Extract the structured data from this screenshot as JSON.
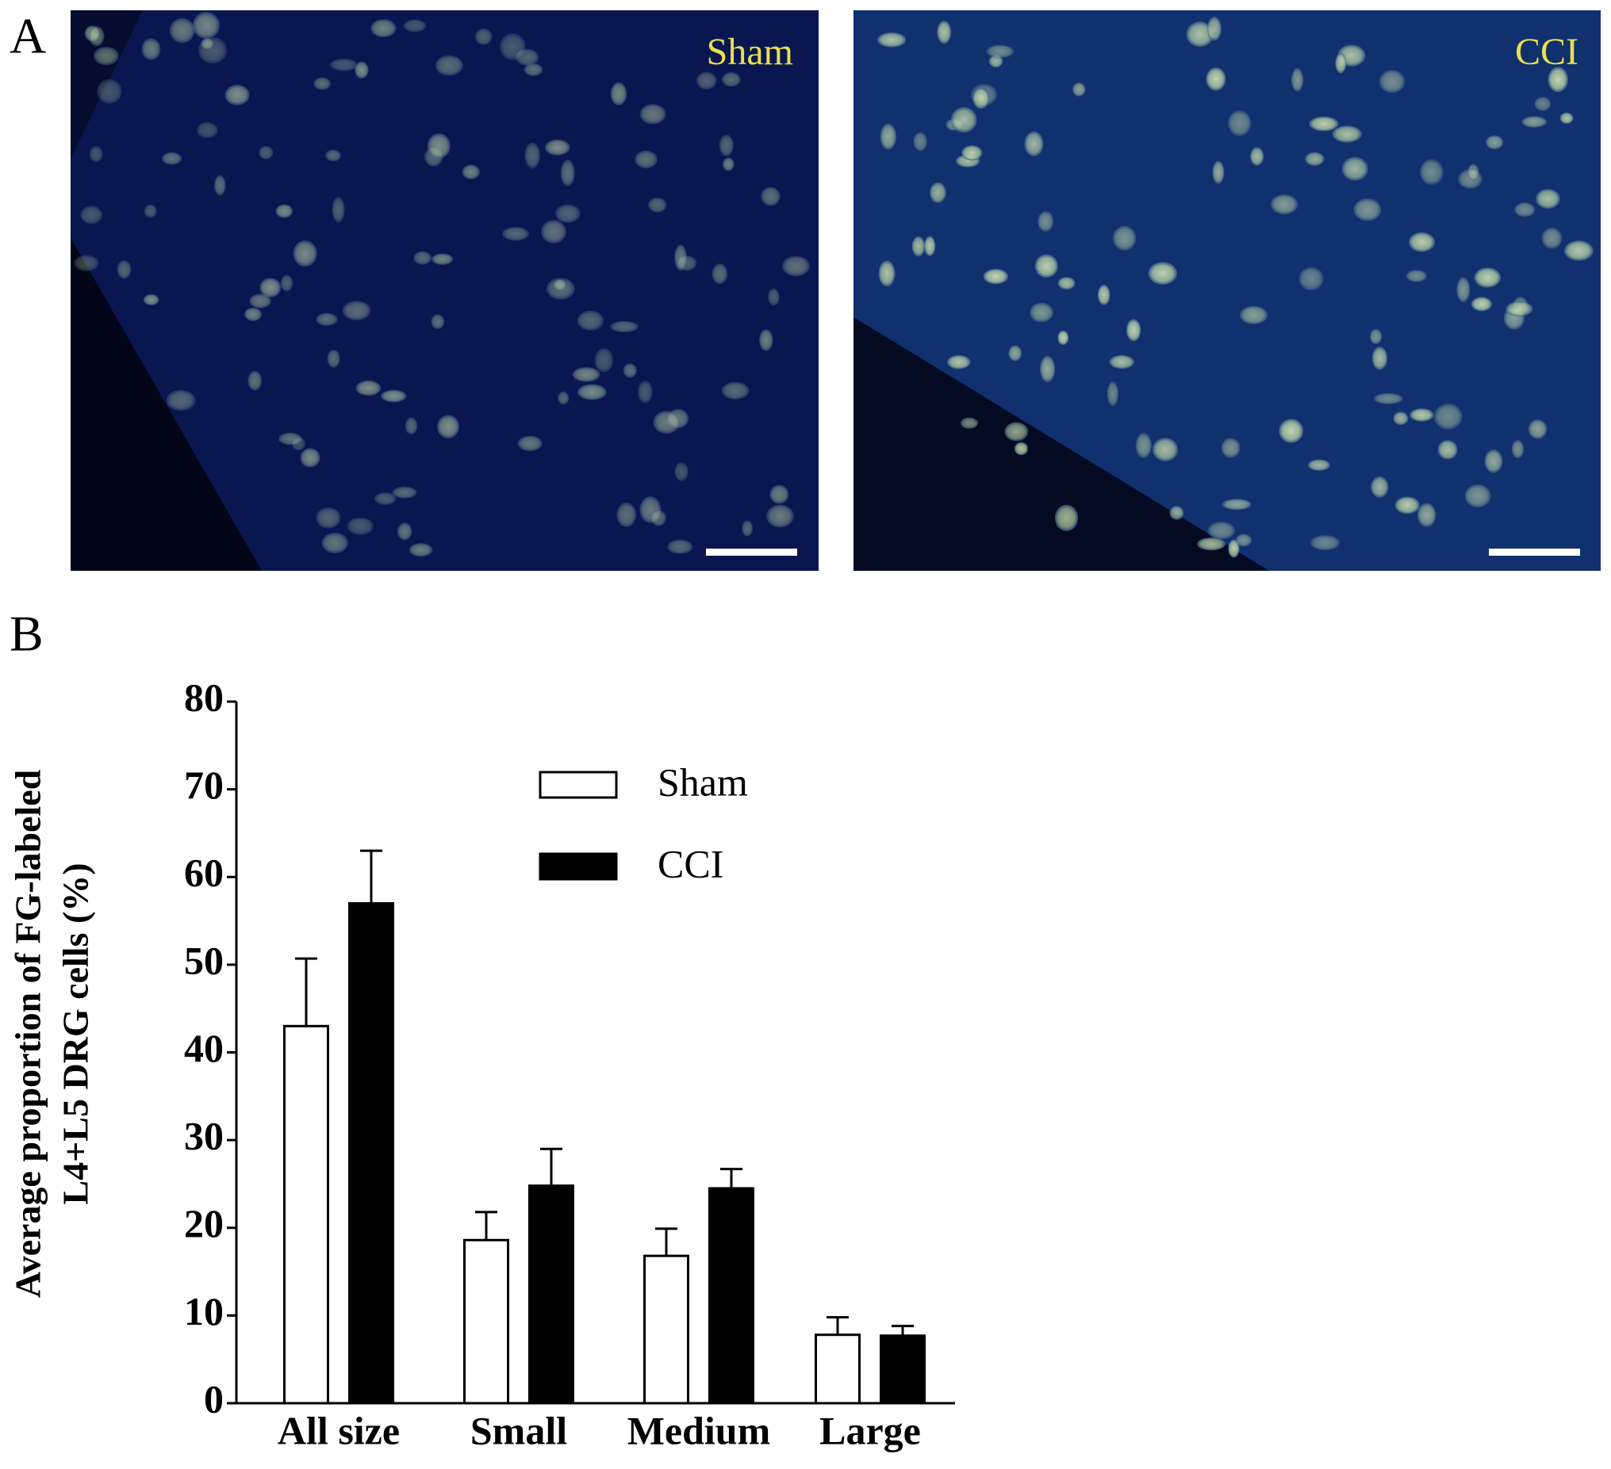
{
  "panel_a": {
    "label": "A",
    "images": [
      {
        "label": "Sham"
      },
      {
        "label": "CCI"
      }
    ]
  },
  "panel_b": {
    "label": "B"
  },
  "chart_data": {
    "type": "bar",
    "ylabel": [
      "Average proportion of FG-labeled",
      "L4+L5 DRG cells (%)"
    ],
    "categories": [
      "All size",
      "Small",
      "Medium",
      "Large"
    ],
    "series": [
      {
        "name": "Sham",
        "color": "#ffffff",
        "values": [
          43,
          18.6,
          16.8,
          7.8
        ],
        "errors": [
          7.7,
          3.2,
          3.1,
          2
        ]
      },
      {
        "name": "CCI",
        "color": "#000000",
        "values": [
          57,
          24.8,
          24.5,
          7.7
        ],
        "errors": [
          6,
          4.2,
          2.2,
          1.1
        ]
      }
    ],
    "ylim": [
      0,
      80
    ],
    "yticks": [
      0,
      10,
      20,
      30,
      40,
      50,
      60,
      70,
      80
    ],
    "legend": "upper center"
  }
}
